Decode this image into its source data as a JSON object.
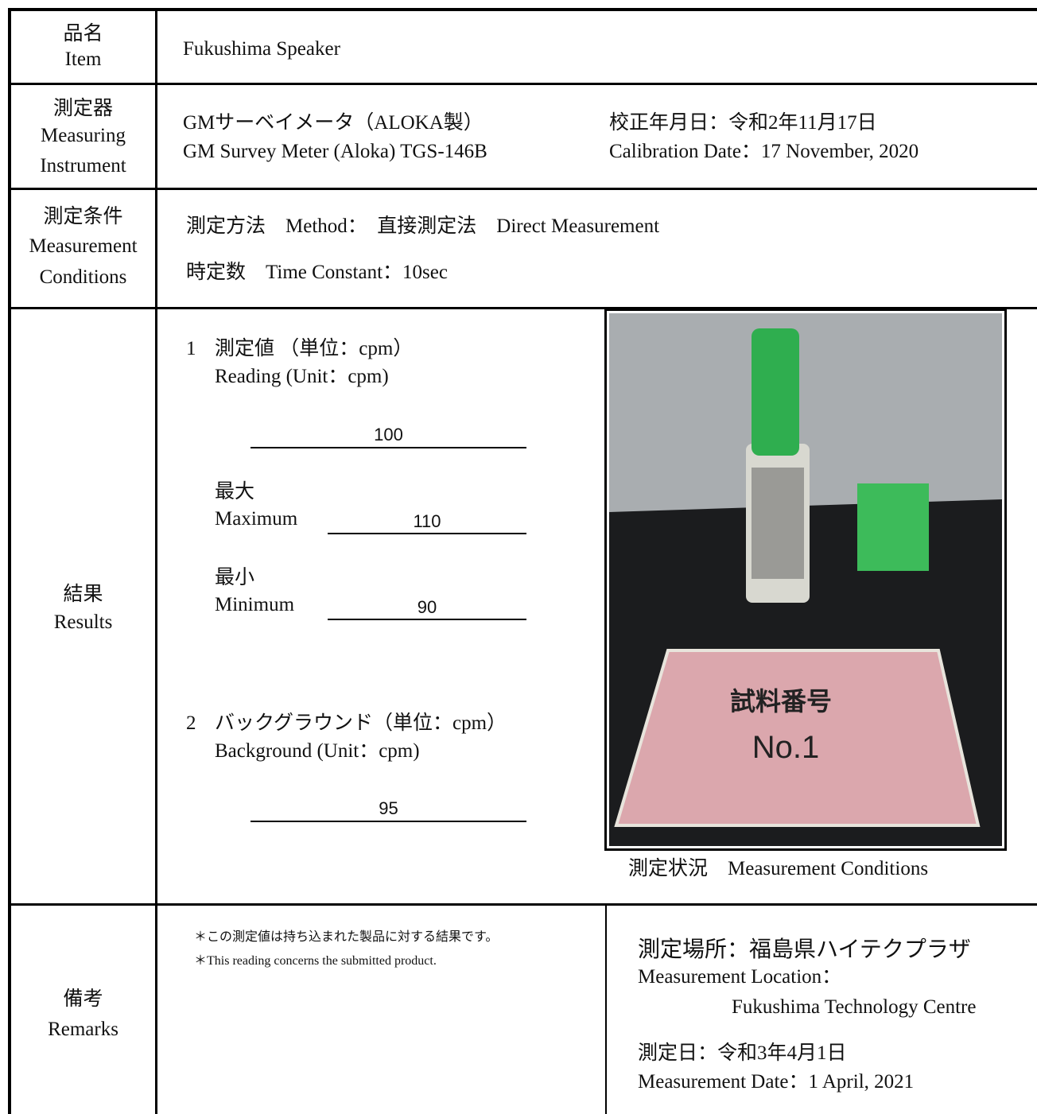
{
  "item": {
    "label_ja": "品名",
    "label_en": "Item",
    "value": "Fukushima Speaker"
  },
  "instrument": {
    "label_ja": "測定器",
    "label_en_1": "Measuring",
    "label_en_2": "Instrument",
    "name_ja": "GMサーベイメータ（ALOKA製）",
    "name_en": "GM Survey Meter (Aloka) TGS-146B",
    "calib_ja": "校正年月日：令和2年11月17日",
    "calib_en": "Calibration Date：17 November, 2020"
  },
  "conditions": {
    "label_ja": "測定条件",
    "label_en_1": "Measurement",
    "label_en_2": "Conditions",
    "method": "測定方法　Method：　直接測定法　Direct Measurement",
    "time_constant": "時定数　Time Constant：10sec"
  },
  "results": {
    "label_ja": "結果",
    "label_en": "Results",
    "reading_num": "1",
    "reading_ja": "測定値 （単位：cpm）",
    "reading_en": "Reading (Unit：cpm)",
    "reading_value": 100,
    "max_ja": "最大",
    "max_en": "Maximum",
    "max_value": 110,
    "min_ja": "最小",
    "min_en": "Minimum",
    "min_value": 90,
    "background_num": "2",
    "background_ja": "バックグラウンド（単位：cpm）",
    "background_en": "Background (Unit：cpm)",
    "background_value": 95,
    "photo_text_1": "試料番号",
    "photo_text_2": "No.1",
    "photo_caption": "測定状況　Measurement Conditions"
  },
  "remarks": {
    "label_ja": "備考",
    "label_en": "Remarks",
    "note_ja": "＊この測定値は持ち込まれた製品に対する結果です。",
    "note_en": "＊This reading concerns the submitted product.",
    "location_ja": "測定場所：福島県ハイテクプラザ",
    "location_en": "Measurement Location：",
    "location_name": "Fukushima Technology Centre",
    "date_ja": "測定日：令和3年4月1日",
    "date_en": "Measurement Date：1 April, 2021"
  }
}
